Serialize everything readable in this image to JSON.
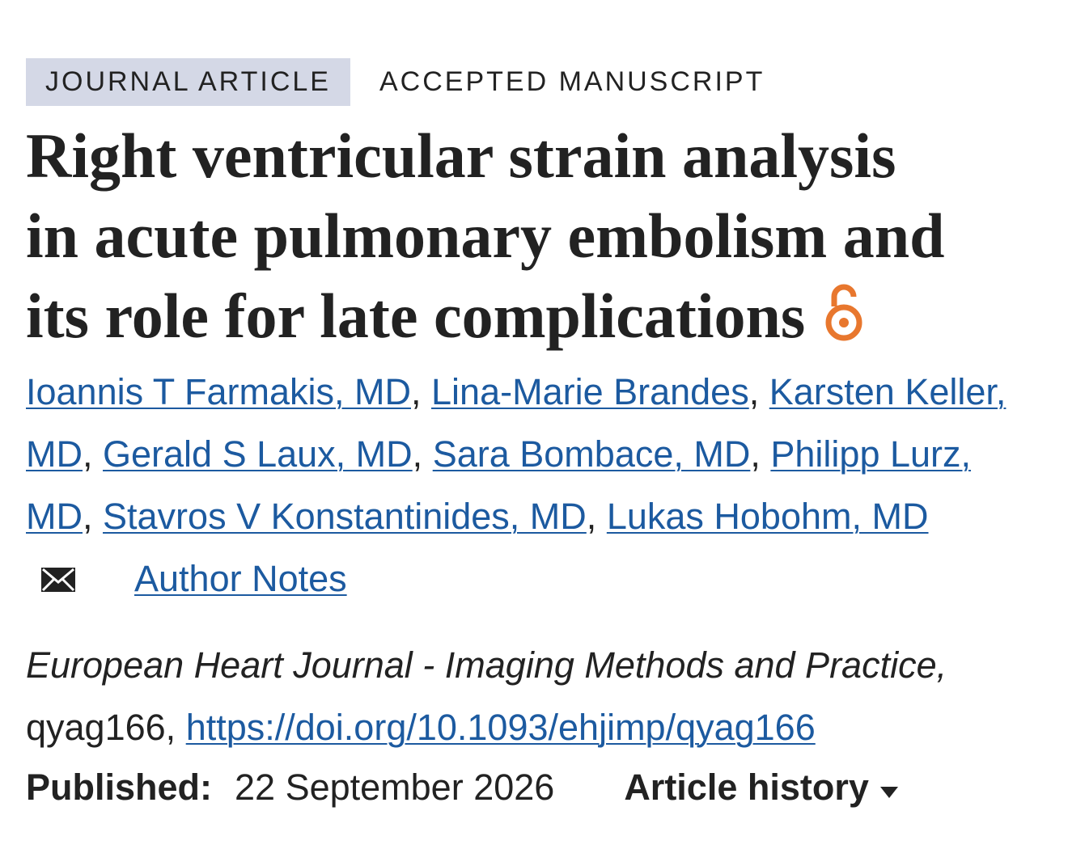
{
  "labels": [
    "JOURNAL ARTICLE",
    "ACCEPTED MANUSCRIPT"
  ],
  "title_lines": [
    "Right ventricular strain analysis",
    "in acute pulmonary embolism and",
    "its role for late complications"
  ],
  "authors": [
    "Ioannis T Farmakis, MD",
    "Lina-Marie Brandes",
    "Karsten Keller, MD",
    "Gerald S Laux, MD",
    "Sara Bombace, MD",
    "Philipp Lurz, MD",
    "Stavros V Konstantinides, MD",
    "Lukas Hobohm, MD"
  ],
  "authors_separator": ",",
  "author_notes": "Author Notes",
  "journal": "European Heart Journal - Imaging Methods and Practice,",
  "article_id": "qyag166,",
  "doi": "https://doi.org/10.1093/ehjimp/qyag166",
  "published_label": "Published:",
  "published_date": "22 September 2026",
  "article_history": "Article history"
}
